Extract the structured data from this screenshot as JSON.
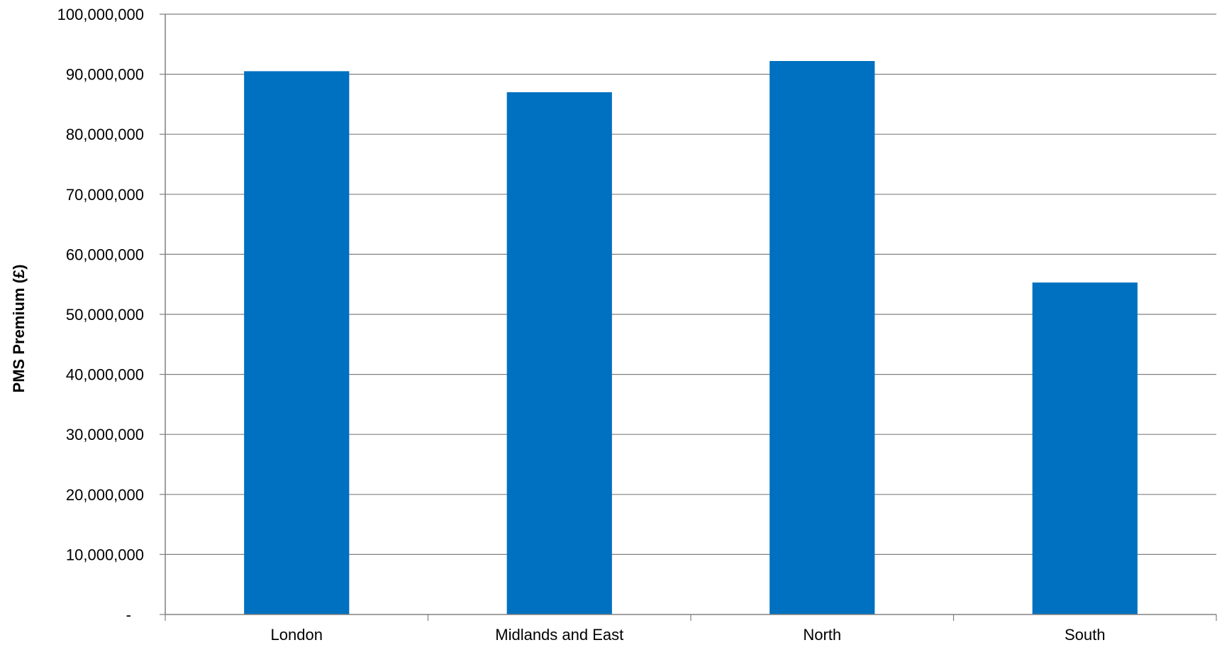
{
  "chart_data": {
    "type": "bar",
    "title": "",
    "xlabel": "",
    "ylabel": "PMS Premium  (£)",
    "categories": [
      "London",
      "Midlands and East",
      "North",
      "South"
    ],
    "values": [
      90500000,
      87000000,
      92200000,
      55300000
    ],
    "ylim": [
      0,
      100000000
    ],
    "y_ticks": [
      0,
      10000000,
      20000000,
      30000000,
      40000000,
      50000000,
      60000000,
      70000000,
      80000000,
      90000000,
      100000000
    ],
    "y_tick_labels": [
      "-",
      "10,000,000",
      "20,000,000",
      "30,000,000",
      "40,000,000",
      "50,000,000",
      "60,000,000",
      "70,000,000",
      "80,000,000",
      "90,000,000",
      "100,000,000"
    ],
    "grid": true,
    "legend": "none",
    "bar_color": "#0070C0",
    "grid_color": "#808080"
  }
}
